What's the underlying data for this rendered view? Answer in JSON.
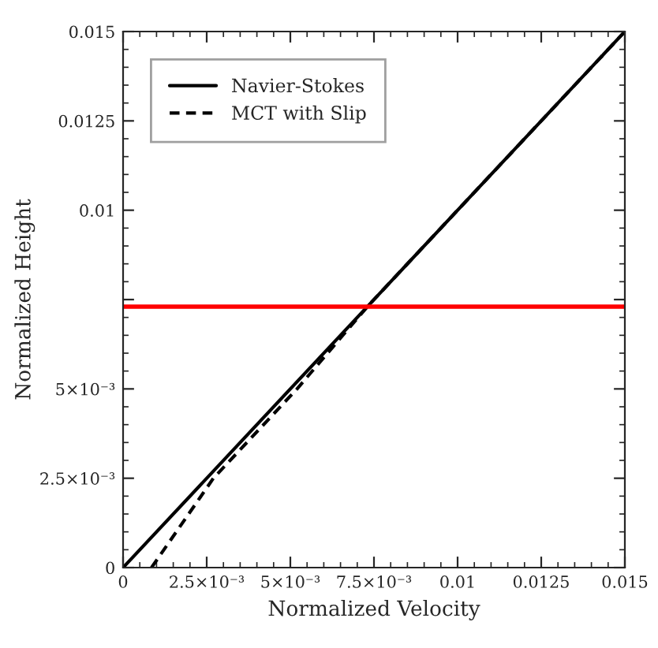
{
  "chart_data": {
    "type": "line",
    "xlabel": "Normalized Velocity",
    "ylabel": "Normalized Height",
    "series": [
      {
        "name": "Navier-Stokes",
        "color": "#000000",
        "line_style": "solid",
        "x": [
          0,
          0.015
        ],
        "values": [
          0,
          0.015
        ]
      },
      {
        "name": "MCT with Slip",
        "color": "#000000",
        "line_style": "dashed",
        "x": [
          0.00085,
          0.0027,
          0.0052,
          0.0073,
          0.015
        ],
        "values": [
          0,
          0.0025,
          0.005,
          0.0073,
          0.015
        ]
      }
    ],
    "xlim": [
      0,
      0.015
    ],
    "ylim": [
      0,
      0.015
    ],
    "xticks": [
      0,
      {
        "value": 0.0025,
        "label": "2.5×10⁻³"
      },
      {
        "value": 0.005,
        "label": "5×10⁻³"
      },
      {
        "value": 0.0075,
        "label": "7.5×10⁻³"
      },
      0.01,
      0.0125,
      0.015
    ],
    "yticks": [
      0,
      {
        "value": 0.0025,
        "label": "2.5×10⁻³"
      },
      {
        "value": 0.005,
        "label": "5×10⁻³"
      },
      {
        "value": 0.0075,
        "label": null
      },
      0.01,
      0.0125,
      0.015
    ],
    "ref_lines": [
      {
        "axis": "y",
        "value": 0.0073,
        "color": "#ff0000"
      }
    ],
    "legend": "top left",
    "grid": false
  }
}
